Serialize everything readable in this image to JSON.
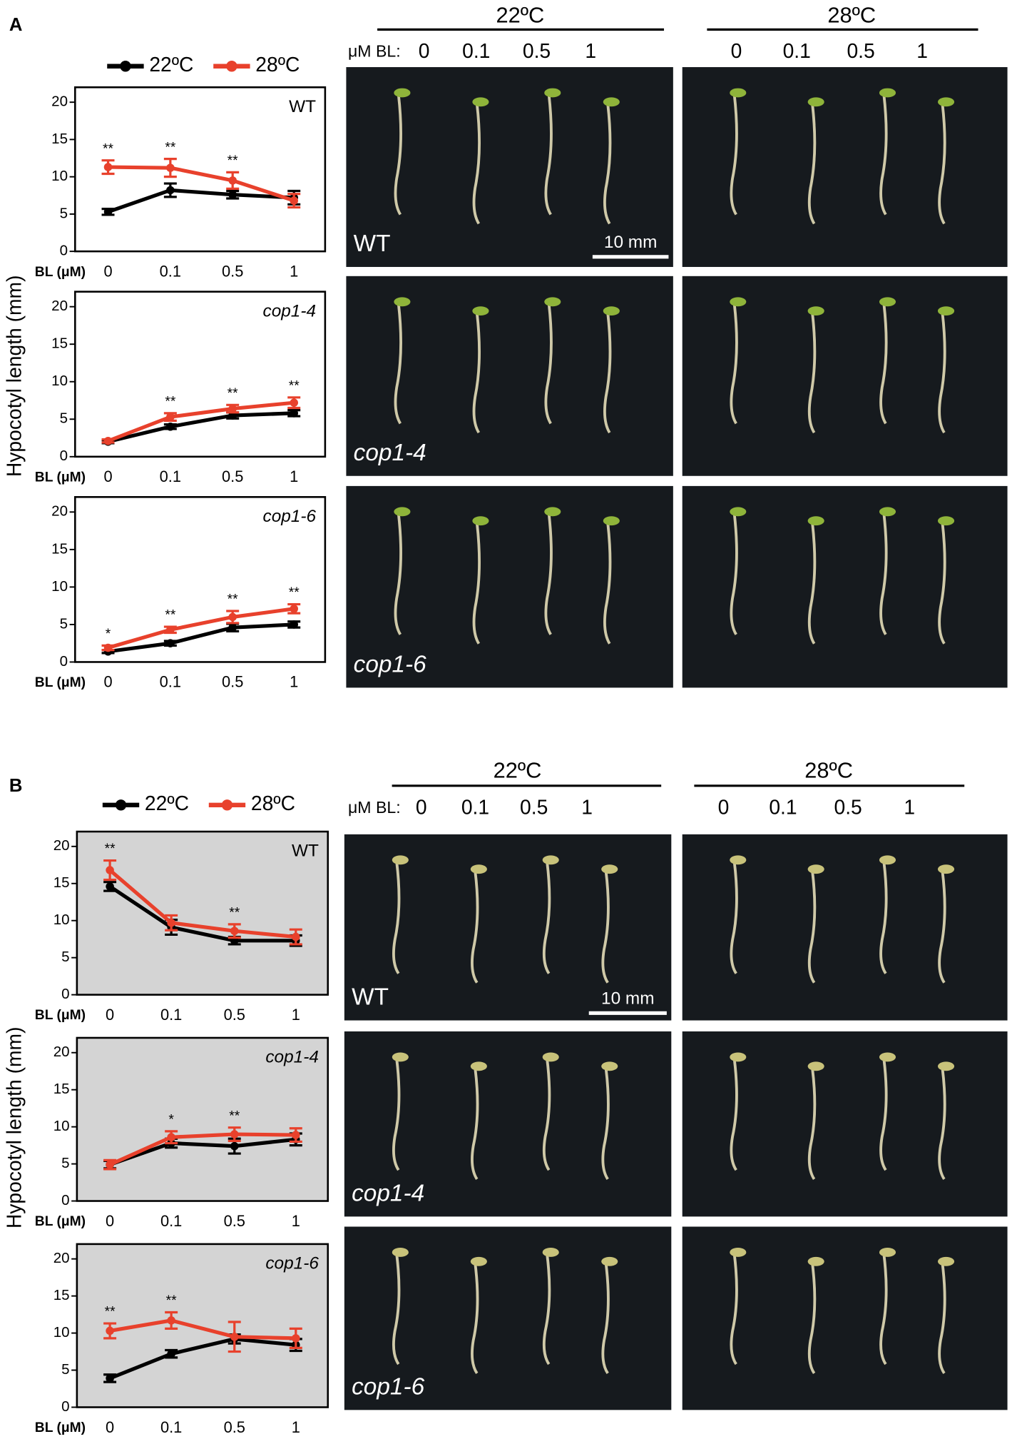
{
  "panels": [
    {
      "label": "A",
      "y_label": "Hypocotyl length (mm)",
      "dose_label": "μM BL:",
      "columns": [
        {
          "temp": "22ºC",
          "doses": [
            "0",
            "0.1",
            "0.5",
            "1"
          ]
        },
        {
          "temp": "28ºC",
          "doses": [
            "0",
            "0.1",
            "0.5",
            "1"
          ]
        }
      ],
      "row_labels": [
        "WT",
        "cop1-4",
        "cop1-6"
      ],
      "scale_bar": "10 mm"
    },
    {
      "label": "B",
      "y_label": "Hypocotyl length (mm)",
      "dose_label": "μM BL:",
      "columns": [
        {
          "temp": "22ºC",
          "doses": [
            "0",
            "0.1",
            "0.5",
            "1"
          ]
        },
        {
          "temp": "28ºC",
          "doses": [
            "0",
            "0.1",
            "0.5",
            "1"
          ]
        }
      ],
      "row_labels": [
        "WT",
        "cop1-4",
        "cop1-6"
      ],
      "scale_bar": "10 mm"
    }
  ],
  "chart_data": [
    {
      "type": "line",
      "title": "WT",
      "x_label": "BL (μM)",
      "categories": [
        "0",
        "0.1",
        "0.5",
        "1"
      ],
      "ylim": [
        0,
        22
      ],
      "yticks": [
        0,
        5,
        10,
        15,
        20
      ],
      "background": "#ffffff",
      "series": [
        {
          "name": "22ºC",
          "color": "#000000",
          "values": [
            5.3,
            8.2,
            7.6,
            7.2
          ],
          "errors": [
            0.4,
            0.9,
            0.5,
            0.9
          ]
        },
        {
          "name": "28ºC",
          "color": "#e8412c",
          "values": [
            11.3,
            11.2,
            9.5,
            6.8
          ],
          "errors": [
            0.9,
            1.2,
            1.1,
            0.9
          ]
        }
      ],
      "annotations": [
        "**",
        "**",
        "**",
        null
      ]
    },
    {
      "type": "line",
      "title": "cop1-4",
      "x_label": "BL (μM)",
      "categories": [
        "0",
        "0.1",
        "0.5",
        "1"
      ],
      "ylim": [
        0,
        22
      ],
      "yticks": [
        0,
        5,
        10,
        15,
        20
      ],
      "background": "#ffffff",
      "series": [
        {
          "name": "22ºC",
          "color": "#000000",
          "values": [
            2.0,
            4.0,
            5.5,
            5.8
          ],
          "errors": [
            0.2,
            0.3,
            0.4,
            0.4
          ]
        },
        {
          "name": "28ºC",
          "color": "#e8412c",
          "values": [
            2.1,
            5.3,
            6.4,
            7.2
          ],
          "errors": [
            0.2,
            0.5,
            0.5,
            0.7
          ]
        }
      ],
      "annotations": [
        null,
        "**",
        "**",
        "**"
      ]
    },
    {
      "type": "line",
      "title": "cop1-6",
      "x_label": "BL (μM)",
      "categories": [
        "0",
        "0.1",
        "0.5",
        "1"
      ],
      "ylim": [
        0,
        22
      ],
      "yticks": [
        0,
        5,
        10,
        15,
        20
      ],
      "background": "#ffffff",
      "series": [
        {
          "name": "22ºC",
          "color": "#000000",
          "values": [
            1.4,
            2.5,
            4.6,
            5.0
          ],
          "errors": [
            0.2,
            0.3,
            0.5,
            0.4
          ]
        },
        {
          "name": "28ºC",
          "color": "#e8412c",
          "values": [
            1.9,
            4.3,
            6.0,
            7.1
          ],
          "errors": [
            0.3,
            0.4,
            0.8,
            0.6
          ]
        }
      ],
      "annotations": [
        "*",
        "**",
        "**",
        "**"
      ]
    },
    {
      "type": "line",
      "title": "WT",
      "x_label": "BL (μM)",
      "categories": [
        "0",
        "0.1",
        "0.5",
        "1"
      ],
      "ylim": [
        0,
        22
      ],
      "yticks": [
        0,
        5,
        10,
        15,
        20
      ],
      "background": "#d4d4d4",
      "series": [
        {
          "name": "22ºC",
          "color": "#000000",
          "values": [
            14.6,
            9.1,
            7.3,
            7.3
          ],
          "errors": [
            0.6,
            1.0,
            0.5,
            0.7
          ]
        },
        {
          "name": "28ºC",
          "color": "#e8412c",
          "values": [
            16.8,
            9.7,
            8.6,
            7.8
          ],
          "errors": [
            1.3,
            1.0,
            0.9,
            1.0
          ]
        }
      ],
      "annotations": [
        "**",
        null,
        "**",
        null
      ]
    },
    {
      "type": "line",
      "title": "cop1-4",
      "x_label": "BL (μM)",
      "categories": [
        "0",
        "0.1",
        "0.5",
        "1"
      ],
      "ylim": [
        0,
        22
      ],
      "yticks": [
        0,
        5,
        10,
        15,
        20
      ],
      "background": "#d4d4d4",
      "series": [
        {
          "name": "22ºC",
          "color": "#000000",
          "values": [
            4.9,
            7.8,
            7.4,
            8.3
          ],
          "errors": [
            0.5,
            0.6,
            1.0,
            0.8
          ]
        },
        {
          "name": "28ºC",
          "color": "#e8412c",
          "values": [
            4.9,
            8.6,
            9.0,
            8.9
          ],
          "errors": [
            0.6,
            0.8,
            0.9,
            0.9
          ]
        }
      ],
      "annotations": [
        null,
        "*",
        "**",
        null
      ]
    },
    {
      "type": "line",
      "title": "cop1-6",
      "x_label": "BL (μM)",
      "categories": [
        "0",
        "0.1",
        "0.5",
        "1"
      ],
      "ylim": [
        0,
        22
      ],
      "yticks": [
        0,
        5,
        10,
        15,
        20
      ],
      "background": "#d4d4d4",
      "series": [
        {
          "name": "22ºC",
          "color": "#000000",
          "values": [
            3.9,
            7.2,
            9.2,
            8.4
          ],
          "errors": [
            0.5,
            0.5,
            0.6,
            0.8
          ]
        },
        {
          "name": "28ºC",
          "color": "#e8412c",
          "values": [
            10.3,
            11.7,
            9.5,
            9.3
          ],
          "errors": [
            1.0,
            1.1,
            2.0,
            1.3
          ]
        }
      ],
      "annotations": [
        "**",
        "**",
        null,
        null
      ]
    }
  ]
}
